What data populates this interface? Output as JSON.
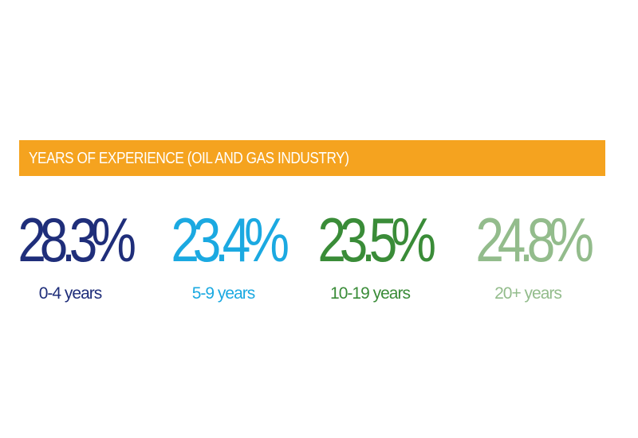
{
  "banner": {
    "title": "YEARS OF EXPERIENCE (OIL AND GAS INDUSTRY)",
    "color": "#F5A31F"
  },
  "stats": [
    {
      "value": "28.3%",
      "label": "0-4 years",
      "color": "#1F2E7A"
    },
    {
      "value": "23.4%",
      "label": "5-9 years",
      "color": "#1BA9E1"
    },
    {
      "value": "23.5%",
      "label": "10-19 years",
      "color": "#3A8C38"
    },
    {
      "value": "24.8%",
      "label": "20+ years",
      "color": "#93BC8C"
    }
  ],
  "chart_data": {
    "type": "table",
    "title": "YEARS OF EXPERIENCE (OIL AND GAS INDUSTRY)",
    "categories": [
      "0-4 years",
      "5-9 years",
      "10-19 years",
      "20+ years"
    ],
    "values": [
      28.3,
      23.4,
      23.5,
      24.8
    ],
    "unit": "%"
  }
}
